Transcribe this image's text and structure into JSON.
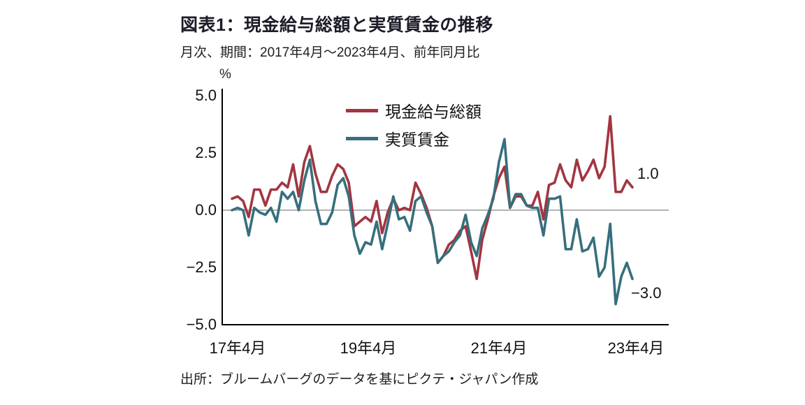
{
  "header": {
    "title": "図表1：現金給与総額と実質賃金の推移",
    "subtitle": "月次、期間：2017年4月～2023年4月、前年同月比"
  },
  "footer": {
    "source": "出所：ブルームバーグのデータを基にピクテ・ジャパン作成"
  },
  "chart_data": {
    "type": "line",
    "title": "図表1：現金給与総額と実質賃金の推移",
    "subtitle": "月次、期間：2017年4月～2023年4月、前年同月比",
    "unit_label": "%",
    "frequency": "monthly",
    "x_start": "2017-04",
    "x_end": "2023-04",
    "ylim": [
      -5.0,
      5.0
    ],
    "yticks": [
      "5.0",
      "2.5",
      "0.0",
      "−2.5",
      "−5.0"
    ],
    "xticks": [
      "17年4月",
      "19年4月",
      "21年4月",
      "23年4月"
    ],
    "grid": "zero-line-only",
    "legend_position": "top-center",
    "axis_color": "#000000",
    "zero_line_color": "#9a9a9a",
    "series": [
      {
        "name": "現金給与総額",
        "color": "#a23540",
        "end_label": "1.0",
        "values": [
          0.5,
          0.6,
          0.4,
          -0.3,
          0.9,
          0.9,
          0.2,
          0.9,
          0.9,
          1.2,
          1.0,
          2.0,
          0.6,
          2.1,
          2.8,
          1.6,
          0.8,
          0.8,
          1.5,
          2.0,
          1.8,
          1.2,
          -0.7,
          -0.5,
          -0.3,
          -0.5,
          0.4,
          -1.0,
          -0.1,
          0.5,
          0.0,
          0.1,
          0.0,
          1.2,
          0.7,
          0.1,
          -0.7,
          -2.3,
          -2.0,
          -1.5,
          -1.3,
          -0.9,
          -0.7,
          -1.8,
          -3.0,
          -1.3,
          -0.4,
          0.6,
          1.4,
          1.9,
          0.1,
          0.6,
          0.6,
          0.2,
          0.2,
          0.8,
          -0.4,
          1.1,
          1.2,
          2.0,
          1.3,
          1.0,
          2.2,
          1.3,
          1.7,
          2.2,
          1.4,
          1.9,
          4.1,
          0.8,
          0.8,
          1.3,
          1.0
        ]
      },
      {
        "name": "実質賃金",
        "color": "#366f7d",
        "end_label": "−3.0",
        "values": [
          0.0,
          0.1,
          0.0,
          -1.1,
          0.1,
          -0.1,
          -0.2,
          0.1,
          -0.5,
          0.8,
          0.5,
          0.8,
          0.0,
          1.3,
          2.2,
          0.4,
          -0.6,
          -0.6,
          -0.1,
          1.1,
          1.4,
          0.6,
          -1.1,
          -1.9,
          -1.4,
          -1.5,
          -0.5,
          -1.7,
          -0.6,
          0.6,
          -0.4,
          -0.3,
          -0.9,
          0.4,
          0.6,
          -0.1,
          -0.7,
          -2.3,
          -2.0,
          -1.8,
          -1.4,
          -1.1,
          -0.2,
          -1.4,
          -2.0,
          -0.8,
          -0.2,
          0.5,
          2.1,
          3.1,
          0.1,
          0.7,
          0.7,
          0.2,
          0.1,
          0.1,
          -1.1,
          0.5,
          0.5,
          0.6,
          -1.7,
          -1.7,
          -0.4,
          -1.8,
          -1.7,
          -1.2,
          -2.9,
          -2.5,
          -0.6,
          -4.1,
          -2.9,
          -2.3,
          -3.0
        ]
      }
    ]
  }
}
